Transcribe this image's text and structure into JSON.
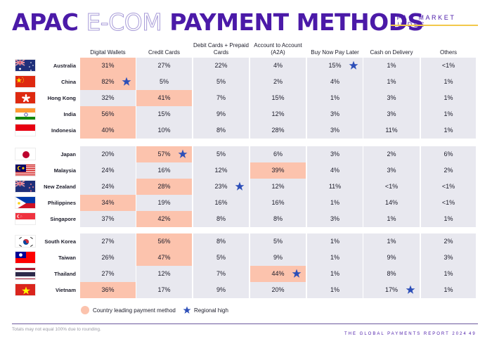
{
  "header": {
    "title_part1": "APAC ",
    "title_outline": "E-COM",
    "title_part2": " PAYMENT METHODS",
    "section_label": "APAC MARKET GUIDES"
  },
  "columns": [
    "Digital Wallets",
    "Credit Cards",
    "Debit Cards + Prepaid Cards",
    "Account to Account (A2A)",
    "Buy Now Pay Later",
    "Cash on Delivery",
    "Others"
  ],
  "rows": [
    {
      "country": "Australia",
      "flag": "australia",
      "values": [
        "31%",
        "27%",
        "22%",
        "4%",
        "15%",
        "1%",
        "<1%"
      ],
      "lead": [
        0
      ],
      "star": [
        4
      ]
    },
    {
      "country": "China",
      "flag": "china",
      "values": [
        "82%",
        "5%",
        "5%",
        "2%",
        "4%",
        "1%",
        "1%"
      ],
      "lead": [
        0
      ],
      "star": [
        0
      ]
    },
    {
      "country": "Hong Kong",
      "flag": "hongkong",
      "values": [
        "32%",
        "41%",
        "7%",
        "15%",
        "1%",
        "3%",
        "1%"
      ],
      "lead": [
        1
      ],
      "star": []
    },
    {
      "country": "India",
      "flag": "india",
      "values": [
        "56%",
        "15%",
        "9%",
        "12%",
        "3%",
        "3%",
        "1%"
      ],
      "lead": [
        0
      ],
      "star": []
    },
    {
      "country": "Indonesia",
      "flag": "indonesia",
      "values": [
        "40%",
        "10%",
        "8%",
        "28%",
        "3%",
        "11%",
        "1%"
      ],
      "lead": [
        0
      ],
      "star": []
    },
    {
      "country": "Japan",
      "flag": "japan",
      "values": [
        "20%",
        "57%",
        "5%",
        "6%",
        "3%",
        "2%",
        "6%"
      ],
      "lead": [
        1
      ],
      "star": [
        1
      ]
    },
    {
      "country": "Malaysia",
      "flag": "malaysia",
      "values": [
        "24%",
        "16%",
        "12%",
        "39%",
        "4%",
        "3%",
        "2%"
      ],
      "lead": [
        3
      ],
      "star": []
    },
    {
      "country": "New Zealand",
      "flag": "newzealand",
      "values": [
        "24%",
        "28%",
        "23%",
        "12%",
        "11%",
        "<1%",
        "<1%"
      ],
      "lead": [
        1
      ],
      "star": [
        2
      ]
    },
    {
      "country": "Philippines",
      "flag": "philippines",
      "values": [
        "34%",
        "19%",
        "16%",
        "16%",
        "1%",
        "14%",
        "<1%"
      ],
      "lead": [
        0
      ],
      "star": []
    },
    {
      "country": "Singapore",
      "flag": "singapore",
      "values": [
        "37%",
        "42%",
        "8%",
        "8%",
        "3%",
        "1%",
        "1%"
      ],
      "lead": [
        1
      ],
      "star": []
    },
    {
      "country": "South Korea",
      "flag": "southkorea",
      "values": [
        "27%",
        "56%",
        "8%",
        "5%",
        "1%",
        "1%",
        "2%"
      ],
      "lead": [
        1
      ],
      "star": []
    },
    {
      "country": "Taiwan",
      "flag": "taiwan",
      "values": [
        "26%",
        "47%",
        "5%",
        "9%",
        "1%",
        "9%",
        "3%"
      ],
      "lead": [
        1
      ],
      "star": []
    },
    {
      "country": "Thailand",
      "flag": "thailand",
      "values": [
        "27%",
        "12%",
        "7%",
        "44%",
        "1%",
        "8%",
        "1%"
      ],
      "lead": [
        3
      ],
      "star": [
        3
      ]
    },
    {
      "country": "Vietnam",
      "flag": "vietnam",
      "values": [
        "36%",
        "17%",
        "9%",
        "20%",
        "1%",
        "17%",
        "1%"
      ],
      "lead": [
        0
      ],
      "star": [
        5
      ]
    }
  ],
  "legend": {
    "leading": "Country leading payment method",
    "regional_high": "Regional high"
  },
  "footer": {
    "note": "Totals may not equal 100% due to rounding.",
    "report": "THE GLOBAL PAYMENTS REPORT 2024",
    "page": "49"
  },
  "colors": {
    "brand": "#4b1aa8",
    "lead_fill": "#fcc3ad",
    "cell_fill": "#e8e8ef",
    "star": "#2d4fb8",
    "accent_line": "#f2c84b"
  },
  "chart_data": {
    "type": "table",
    "title": "APAC E-COM PAYMENT METHODS",
    "columns": [
      "Digital Wallets",
      "Credit Cards",
      "Debit Cards + Prepaid Cards",
      "Account to Account (A2A)",
      "Buy Now Pay Later",
      "Cash on Delivery",
      "Others"
    ],
    "row_labels": [
      "Australia",
      "China",
      "Hong Kong",
      "India",
      "Indonesia",
      "Japan",
      "Malaysia",
      "New Zealand",
      "Philippines",
      "Singapore",
      "South Korea",
      "Taiwan",
      "Thailand",
      "Vietnam"
    ],
    "values": [
      [
        "31%",
        "27%",
        "22%",
        "4%",
        "15%",
        "1%",
        "<1%"
      ],
      [
        "82%",
        "5%",
        "5%",
        "2%",
        "4%",
        "1%",
        "1%"
      ],
      [
        "32%",
        "41%",
        "7%",
        "15%",
        "1%",
        "3%",
        "1%"
      ],
      [
        "56%",
        "15%",
        "9%",
        "12%",
        "3%",
        "3%",
        "1%"
      ],
      [
        "40%",
        "10%",
        "8%",
        "28%",
        "3%",
        "11%",
        "1%"
      ],
      [
        "20%",
        "57%",
        "5%",
        "6%",
        "3%",
        "2%",
        "6%"
      ],
      [
        "24%",
        "16%",
        "12%",
        "39%",
        "4%",
        "3%",
        "2%"
      ],
      [
        "24%",
        "28%",
        "23%",
        "12%",
        "11%",
        "<1%",
        "<1%"
      ],
      [
        "34%",
        "19%",
        "16%",
        "16%",
        "1%",
        "14%",
        "<1%"
      ],
      [
        "37%",
        "42%",
        "8%",
        "8%",
        "3%",
        "1%",
        "1%"
      ],
      [
        "27%",
        "56%",
        "8%",
        "5%",
        "1%",
        "1%",
        "2%"
      ],
      [
        "26%",
        "47%",
        "5%",
        "9%",
        "1%",
        "9%",
        "3%"
      ],
      [
        "27%",
        "12%",
        "7%",
        "44%",
        "1%",
        "8%",
        "1%"
      ],
      [
        "36%",
        "17%",
        "9%",
        "20%",
        "1%",
        "17%",
        "1%"
      ]
    ],
    "highlight_country_leading": [
      [
        0,
        0
      ],
      [
        1,
        0
      ],
      [
        2,
        1
      ],
      [
        3,
        0
      ],
      [
        4,
        0
      ],
      [
        5,
        1
      ],
      [
        6,
        3
      ],
      [
        7,
        1
      ],
      [
        8,
        0
      ],
      [
        9,
        1
      ],
      [
        10,
        1
      ],
      [
        11,
        1
      ],
      [
        12,
        3
      ],
      [
        13,
        0
      ]
    ],
    "regional_high": [
      [
        1,
        0
      ],
      [
        5,
        1
      ],
      [
        7,
        2
      ],
      [
        12,
        3
      ],
      [
        0,
        4
      ],
      [
        13,
        5
      ]
    ],
    "legend": [
      "Country leading payment method",
      "Regional high"
    ],
    "note": "Totals may not equal 100% due to rounding."
  }
}
